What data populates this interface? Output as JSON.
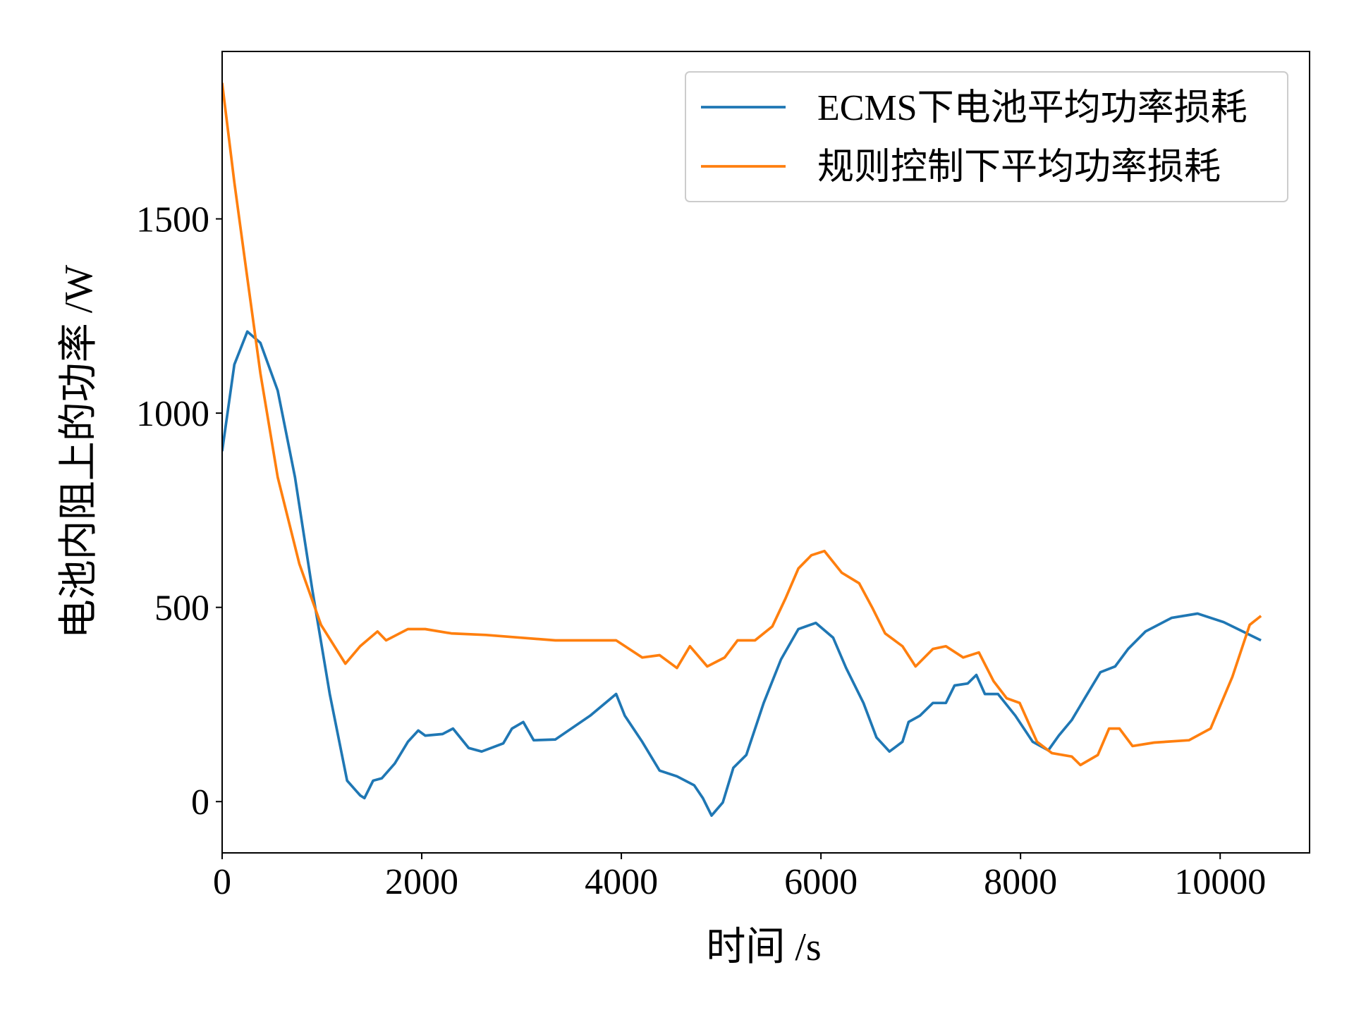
{
  "chart_data": {
    "type": "line",
    "xlabel": "时间 /s",
    "ylabel": "电池内阻上的功率 /W",
    "xlim": [
      0,
      10896
    ],
    "ylim": [
      -132,
      1931
    ],
    "xticks": [
      0,
      2000,
      4000,
      6000,
      8000,
      10000
    ],
    "yticks": [
      0,
      500,
      1000,
      1500
    ],
    "legend": "upper right",
    "series": [
      {
        "name": "ECMS下电池平均功率损耗",
        "color": "#1f77b4",
        "x": [
          0,
          122,
          252,
          383,
          557,
          730,
          904,
          1078,
          1252,
          1383,
          1426,
          1513,
          1600,
          1730,
          1861,
          1965,
          2035,
          2209,
          2313,
          2470,
          2600,
          2817,
          2904,
          3017,
          3122,
          3339,
          3687,
          3948,
          4035,
          4209,
          4383,
          4557,
          4730,
          4817,
          4904,
          5017,
          5122,
          5252,
          5426,
          5600,
          5774,
          5948,
          6122,
          6252,
          6426,
          6557,
          6687,
          6817,
          6878,
          6991,
          7122,
          7252,
          7339,
          7470,
          7557,
          7643,
          7774,
          7948,
          8122,
          8278,
          8383,
          8513,
          8643,
          8800,
          8948,
          9078,
          9252,
          9513,
          9774,
          10035,
          10409
        ],
        "values": [
          902,
          1125,
          1210,
          1181,
          1058,
          835,
          545,
          277,
          54,
          16,
          9,
          54,
          60,
          98,
          154,
          183,
          170,
          174,
          188,
          138,
          129,
          150,
          188,
          205,
          158,
          160,
          221,
          277,
          221,
          154,
          80,
          65,
          42,
          9,
          -36,
          -2,
          87,
          120,
          254,
          366,
          444,
          460,
          422,
          344,
          254,
          165,
          129,
          154,
          205,
          221,
          254,
          254,
          299,
          304,
          326,
          277,
          277,
          221,
          154,
          132,
          170,
          210,
          266,
          333,
          348,
          393,
          438,
          473,
          484,
          462,
          415
        ]
      },
      {
        "name": "规则控制下平均功率损耗",
        "color": "#ff7f0e",
        "x": [
          0,
          122,
          252,
          383,
          557,
          774,
          991,
          1235,
          1383,
          1557,
          1643,
          1861,
          2035,
          2296,
          2643,
          2991,
          3339,
          3687,
          3948,
          4209,
          4383,
          4557,
          4687,
          4861,
          5035,
          5165,
          5339,
          5513,
          5643,
          5774,
          5904,
          6035,
          6209,
          6383,
          6513,
          6643,
          6817,
          6948,
          7122,
          7252,
          7426,
          7583,
          7730,
          7861,
          7991,
          8165,
          8313,
          8513,
          8600,
          8774,
          8887,
          8991,
          9122,
          9339,
          9687,
          9904,
          10122,
          10296,
          10409
        ],
        "values": [
          1850,
          1594,
          1348,
          1103,
          835,
          612,
          455,
          355,
          400,
          438,
          415,
          444,
          444,
          433,
          429,
          422,
          415,
          415,
          415,
          371,
          377,
          344,
          400,
          348,
          371,
          415,
          415,
          451,
          522,
          600,
          634,
          645,
          589,
          562,
          500,
          433,
          400,
          348,
          393,
          400,
          371,
          384,
          310,
          266,
          254,
          154,
          125,
          116,
          94,
          120,
          188,
          188,
          143,
          152,
          158,
          188,
          321,
          455,
          478
        ]
      }
    ]
  }
}
